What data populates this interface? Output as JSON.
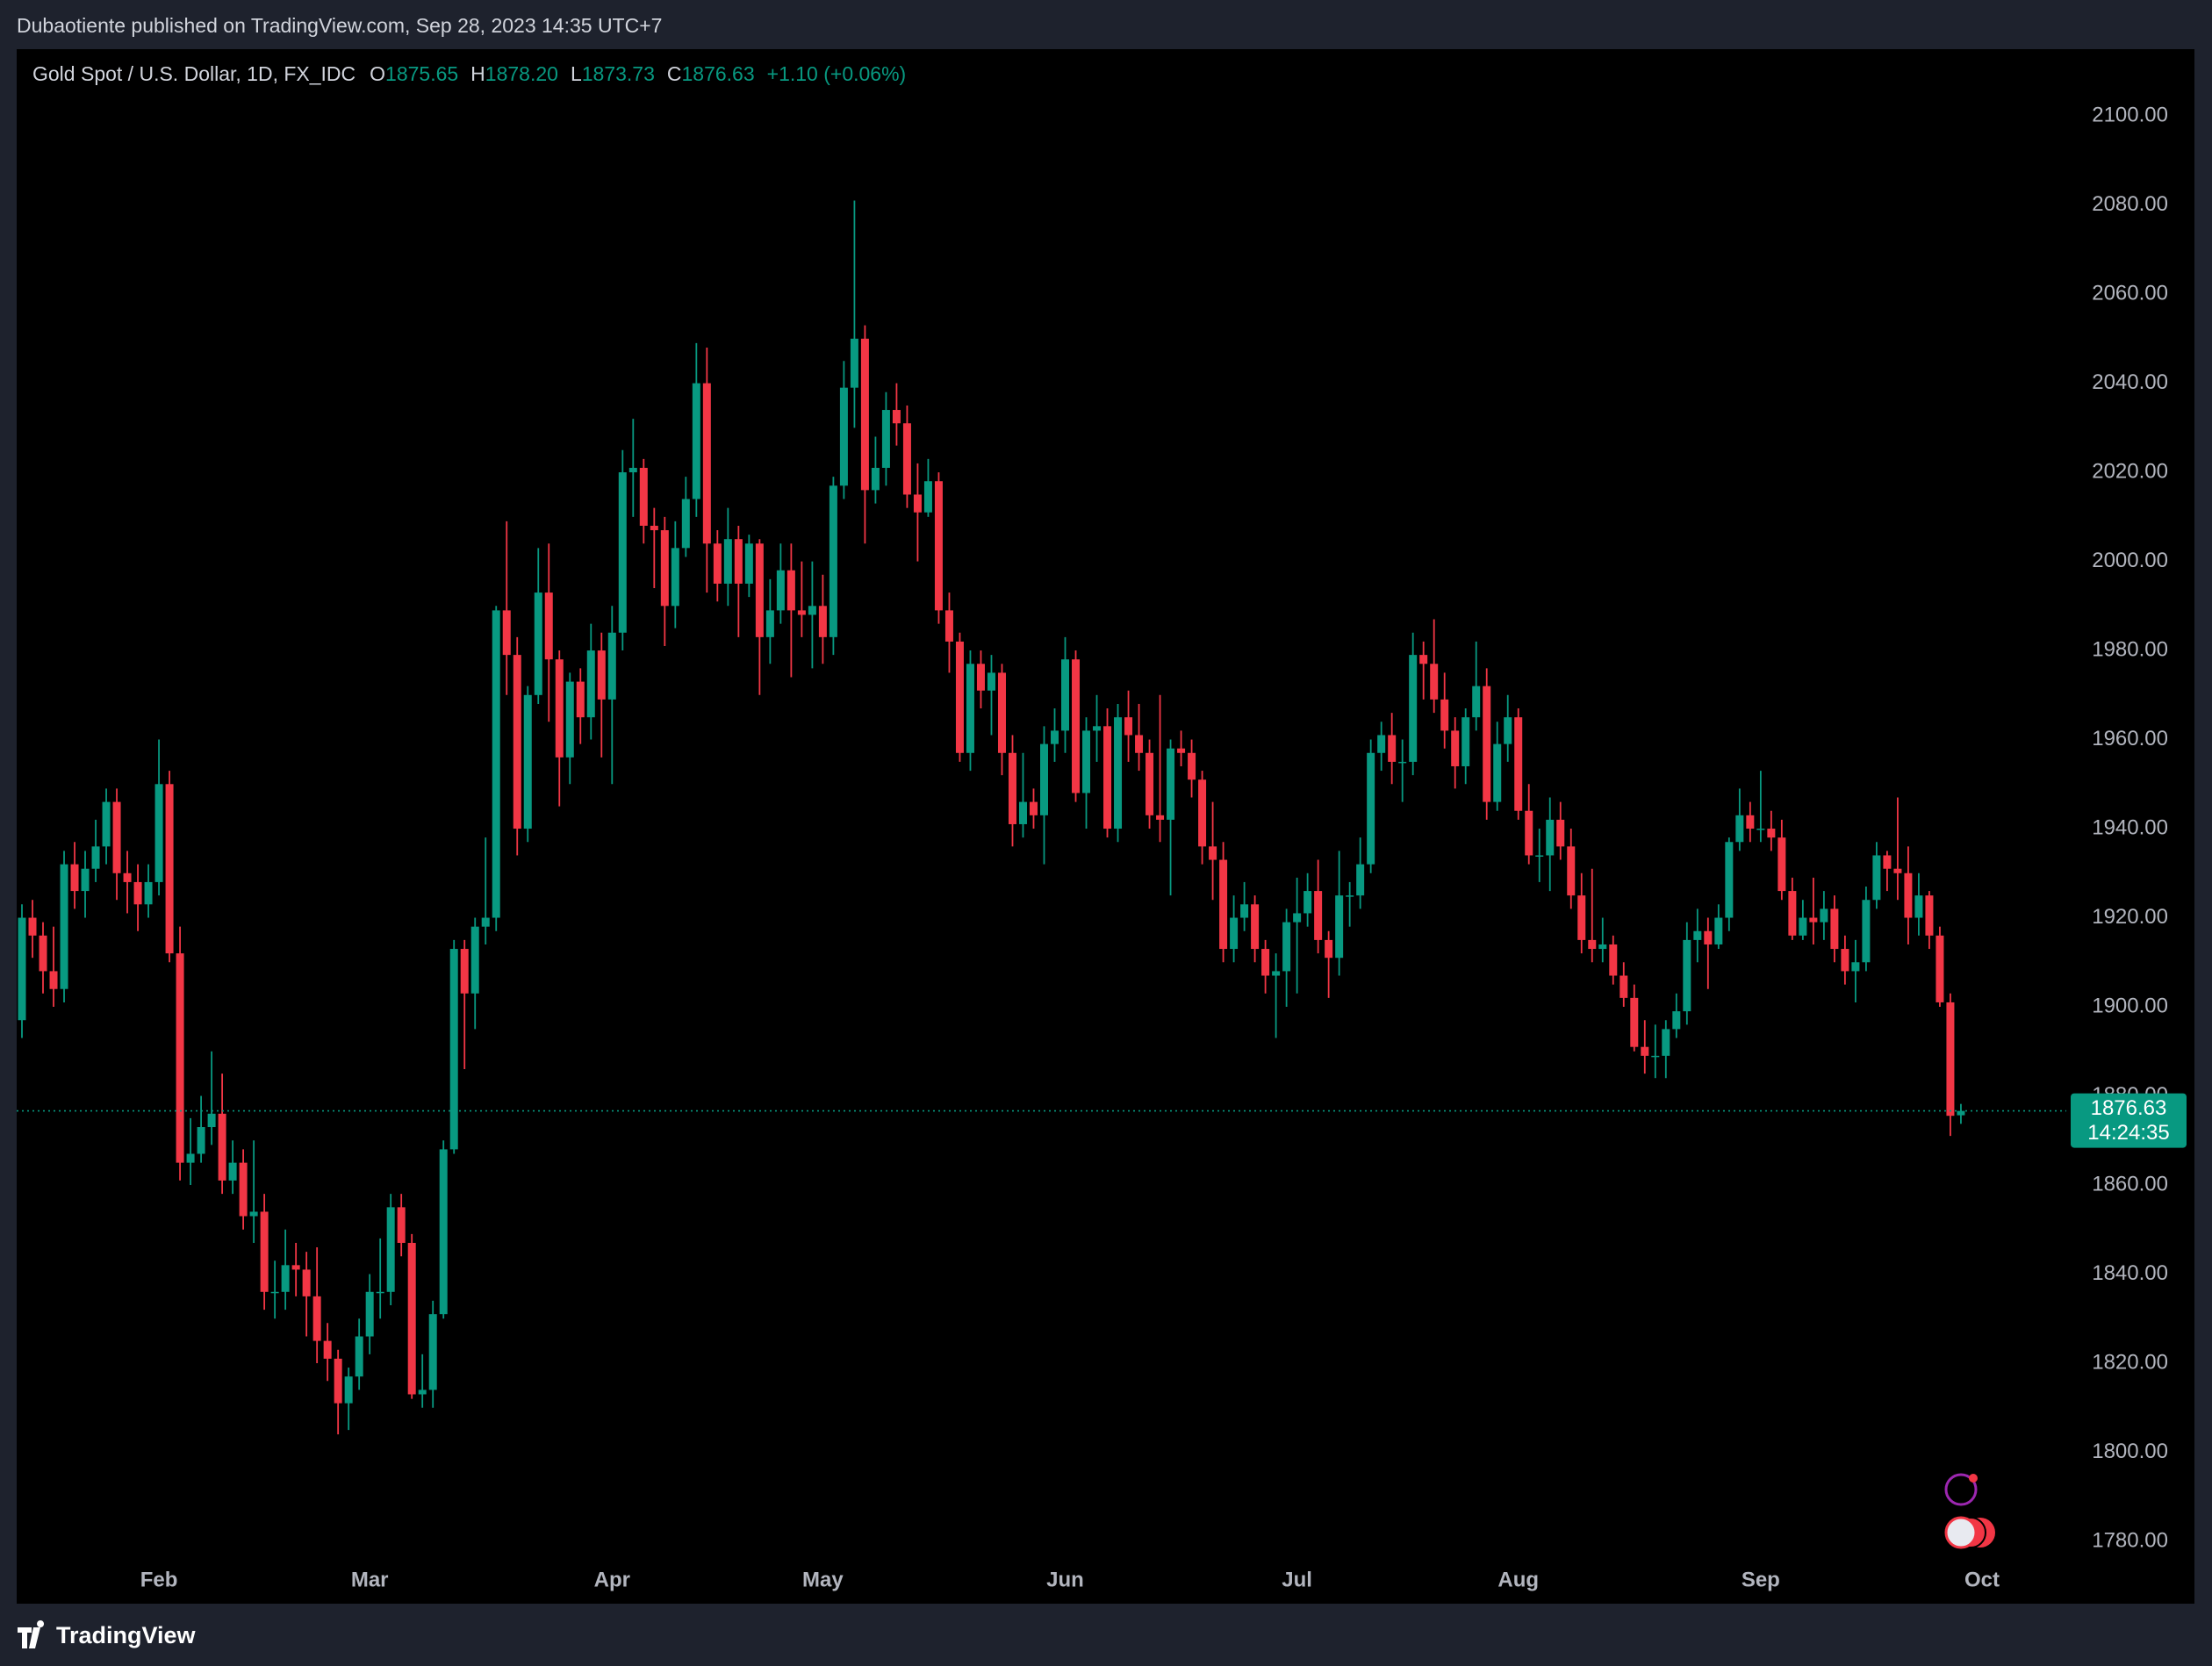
{
  "header": {
    "published": "Dubaotiente published on TradingView.com, Sep 28, 2023 14:35 UTC+7"
  },
  "chart_data": {
    "type": "candlestick",
    "title": "Gold Spot / U.S. Dollar, 1D, FX_IDC",
    "legend": [
      {
        "key": "O",
        "value": "1875.65"
      },
      {
        "key": "H",
        "value": "1878.20"
      },
      {
        "key": "L",
        "value": "1873.73"
      },
      {
        "key": "C",
        "value": "1876.63"
      }
    ],
    "change": "+1.10 (+0.06%)",
    "up_color": "#089981",
    "down_color": "#f23645",
    "open": [
      1897,
      1920,
      1916,
      1908,
      1904,
      1932,
      1926,
      1931,
      1936,
      1946,
      1930,
      1928,
      1923,
      1928,
      1950,
      1912,
      1865,
      1867,
      1873,
      1876,
      1861,
      1865,
      1853,
      1854,
      1836,
      1836,
      1842,
      1841,
      1835,
      1825,
      1821,
      1811,
      1817,
      1826,
      1836,
      1836,
      1855,
      1847,
      1813,
      1814,
      1831,
      1868,
      1913,
      1903,
      1918,
      1920,
      1989,
      1979,
      1940,
      1970,
      1993,
      1978,
      1956,
      1973,
      1965,
      1980,
      1969,
      1984,
      2020,
      2021,
      2008,
      2007,
      1990,
      2003,
      2014,
      2040,
      2004,
      1995,
      2005,
      1995,
      2004,
      1983,
      1989,
      1998,
      1989,
      1988,
      1990,
      1983,
      2017,
      2039,
      2050,
      2016,
      2021,
      2034,
      2031,
      2015,
      2011,
      2018,
      1989,
      1982,
      1957,
      1977,
      1971,
      1975,
      1957,
      1941,
      1946,
      1943,
      1959,
      1962,
      1978,
      1948,
      1962,
      1963,
      1940,
      1965,
      1961,
      1957,
      1943,
      1942,
      1958,
      1957,
      1951,
      1936,
      1933,
      1913,
      1920,
      1923,
      1913,
      1907,
      1908,
      1919,
      1921,
      1926,
      1915,
      1911,
      1925,
      1925,
      1932,
      1957,
      1961,
      1955,
      1955,
      1979,
      1977,
      1969,
      1962,
      1954,
      1965,
      1972,
      1946,
      1959,
      1965,
      1944,
      1934,
      1934,
      1942,
      1936,
      1925,
      1915,
      1913,
      1914,
      1907,
      1902,
      1891,
      1889,
      1889,
      1895,
      1899,
      1915,
      1917,
      1914,
      1920,
      1937,
      1943,
      1940,
      1940,
      1938,
      1926,
      1916,
      1920,
      1919,
      1922,
      1913,
      1908,
      1910,
      1924,
      1934,
      1931,
      1930,
      1920,
      1925,
      1916,
      1901,
      1875.65
    ],
    "high": [
      1923,
      1924,
      1919,
      1918,
      1935,
      1937,
      1935,
      1942,
      1949,
      1949,
      1935,
      1932,
      1932,
      1960,
      1953,
      1918,
      1875,
      1880,
      1890,
      1885,
      1870,
      1868,
      1870,
      1858,
      1843,
      1850,
      1847,
      1845,
      1846,
      1829,
      1823,
      1819,
      1830,
      1840,
      1848,
      1858,
      1858,
      1849,
      1822,
      1834,
      1870,
      1915,
      1915,
      1920,
      1938,
      1990,
      2009,
      1983,
      1972,
      2003,
      2004,
      1980,
      1975,
      1976,
      1986,
      1984,
      1990,
      2025,
      2032,
      2023,
      2012,
      2010,
      2009,
      2019,
      2049,
      2048,
      2007,
      2012,
      2008,
      2006,
      2005,
      1996,
      2004,
      2004,
      2000,
      2000,
      1997,
      2019,
      2045,
      2081,
      2053,
      2028,
      2038,
      2040,
      2035,
      2022,
      2023,
      2020,
      1993,
      1984,
      1980,
      1980,
      1979,
      1977,
      1961,
      1957,
      1949,
      1963,
      1967,
      1983,
      1980,
      1965,
      1970,
      1967,
      1968,
      1971,
      1968,
      1960,
      1970,
      1960,
      1962,
      1960,
      1953,
      1946,
      1937,
      1925,
      1928,
      1925,
      1915,
      1912,
      1922,
      1929,
      1930,
      1933,
      1917,
      1935,
      1928,
      1938,
      1960,
      1964,
      1966,
      1960,
      1984,
      1982,
      1987,
      1975,
      1965,
      1967,
      1982,
      1976,
      1964,
      1970,
      1967,
      1950,
      1940,
      1947,
      1946,
      1940,
      1930,
      1931,
      1920,
      1916,
      1910,
      1905,
      1897,
      1896,
      1897,
      1903,
      1919,
      1922,
      1920,
      1923,
      1938,
      1949,
      1946,
      1953,
      1944,
      1942,
      1929,
      1924,
      1929,
      1926,
      1925,
      1916,
      1915,
      1927,
      1937,
      1935,
      1947,
      1936,
      1930,
      1926,
      1918,
      1903,
      1878.2
    ],
    "low": [
      1893,
      1911,
      1903,
      1900,
      1901,
      1922,
      1920,
      1928,
      1932,
      1924,
      1921,
      1917,
      1920,
      1925,
      1910,
      1861,
      1860,
      1865,
      1869,
      1858,
      1858,
      1850,
      1847,
      1832,
      1830,
      1832,
      1835,
      1826,
      1820,
      1816,
      1804,
      1805,
      1814,
      1822,
      1830,
      1833,
      1844,
      1812,
      1810,
      1810,
      1830,
      1867,
      1886,
      1895,
      1914,
      1917,
      1970,
      1934,
      1937,
      1968,
      1964,
      1945,
      1950,
      1959,
      1960,
      1956,
      1950,
      1980,
      2010,
      2004,
      1994,
      1981,
      1985,
      2001,
      2010,
      1993,
      1991,
      1990,
      1983,
      1992,
      1970,
      1977,
      1986,
      1974,
      1983,
      1976,
      1977,
      1979,
      2014,
      2030,
      2004,
      2013,
      2017,
      2026,
      2012,
      2000,
      2010,
      1986,
      1975,
      1955,
      1953,
      1967,
      1961,
      1952,
      1936,
      1938,
      1940,
      1932,
      1955,
      1957,
      1946,
      1940,
      1955,
      1938,
      1937,
      1955,
      1953,
      1940,
      1937,
      1925,
      1954,
      1947,
      1932,
      1924,
      1910,
      1910,
      1917,
      1910,
      1903,
      1893,
      1900,
      1903,
      1918,
      1912,
      1902,
      1907,
      1918,
      1922,
      1930,
      1953,
      1950,
      1946,
      1952,
      1969,
      1966,
      1958,
      1949,
      1950,
      1962,
      1942,
      1944,
      1955,
      1942,
      1932,
      1928,
      1926,
      1933,
      1922,
      1912,
      1910,
      1910,
      1905,
      1900,
      1890,
      1885,
      1884,
      1884,
      1893,
      1896,
      1910,
      1904,
      1913,
      1917,
      1935,
      1937,
      1937,
      1935,
      1924,
      1915,
      1915,
      1914,
      1915,
      1910,
      1905,
      1901,
      1908,
      1922,
      1926,
      1924,
      1914,
      1916,
      1913,
      1900,
      1871,
      1873.73
    ],
    "close": [
      1920,
      1916,
      1908,
      1904,
      1932,
      1926,
      1931,
      1936,
      1946,
      1930,
      1928,
      1923,
      1928,
      1950,
      1912,
      1865,
      1867,
      1873,
      1876,
      1861,
      1865,
      1853,
      1854,
      1836,
      1836,
      1842,
      1841,
      1835,
      1825,
      1821,
      1811,
      1817,
      1826,
      1836,
      1836,
      1855,
      1847,
      1813,
      1814,
      1831,
      1868,
      1913,
      1903,
      1918,
      1920,
      1989,
      1979,
      1940,
      1970,
      1993,
      1978,
      1956,
      1973,
      1965,
      1980,
      1969,
      1984,
      2020,
      2021,
      2008,
      2007,
      1990,
      2003,
      2014,
      2040,
      2004,
      1995,
      2005,
      1995,
      2004,
      1983,
      1989,
      1998,
      1989,
      1988,
      1990,
      1983,
      2017,
      2039,
      2050,
      2016,
      2021,
      2034,
      2031,
      2015,
      2011,
      2018,
      1989,
      1982,
      1957,
      1977,
      1971,
      1975,
      1957,
      1941,
      1946,
      1943,
      1959,
      1962,
      1978,
      1948,
      1962,
      1963,
      1940,
      1965,
      1961,
      1957,
      1943,
      1942,
      1958,
      1957,
      1951,
      1936,
      1933,
      1913,
      1920,
      1923,
      1913,
      1907,
      1908,
      1919,
      1921,
      1926,
      1915,
      1911,
      1925,
      1925,
      1932,
      1957,
      1961,
      1955,
      1955,
      1979,
      1977,
      1969,
      1962,
      1954,
      1965,
      1972,
      1946,
      1959,
      1965,
      1944,
      1934,
      1934,
      1942,
      1936,
      1925,
      1915,
      1913,
      1914,
      1907,
      1902,
      1891,
      1889,
      1889,
      1895,
      1899,
      1915,
      1917,
      1914,
      1920,
      1937,
      1943,
      1940,
      1940,
      1938,
      1926,
      1916,
      1920,
      1919,
      1922,
      1913,
      1908,
      1910,
      1924,
      1934,
      1931,
      1930,
      1920,
      1925,
      1916,
      1901,
      1875.53,
      1876.63
    ],
    "xlim": [
      -0.5,
      194
    ],
    "xticks": [
      {
        "value": 13,
        "label": "Feb"
      },
      {
        "value": 33,
        "label": "Mar"
      },
      {
        "value": 56,
        "label": "Apr"
      },
      {
        "value": 76,
        "label": "May"
      },
      {
        "value": 99,
        "label": "Jun"
      },
      {
        "value": 121,
        "label": "Jul"
      },
      {
        "value": 142,
        "label": "Aug"
      },
      {
        "value": 165,
        "label": "Sep"
      },
      {
        "value": 186,
        "label": "Oct"
      }
    ],
    "ylim": [
      1766,
      2115
    ],
    "yticks": [
      {
        "value": 1780,
        "label": "1780.00"
      },
      {
        "value": 1800,
        "label": "1800.00"
      },
      {
        "value": 1820,
        "label": "1820.00"
      },
      {
        "value": 1840,
        "label": "1840.00"
      },
      {
        "value": 1860,
        "label": "1860.00"
      },
      {
        "value": 1880,
        "label": "1880.00"
      },
      {
        "value": 1900,
        "label": "1900.00"
      },
      {
        "value": 1920,
        "label": "1920.00"
      },
      {
        "value": 1940,
        "label": "1940.00"
      },
      {
        "value": 1960,
        "label": "1960.00"
      },
      {
        "value": 1980,
        "label": "1980.00"
      },
      {
        "value": 2000,
        "label": "2000.00"
      },
      {
        "value": 2020,
        "label": "2020.00"
      },
      {
        "value": 2040,
        "label": "2040.00"
      },
      {
        "value": 2060,
        "label": "2060.00"
      },
      {
        "value": 2080,
        "label": "2080.00"
      },
      {
        "value": 2100,
        "label": "2100.00"
      }
    ],
    "last_price": 1876.63,
    "countdown": "14:24:35"
  },
  "footer": {
    "brand": "TradingView"
  }
}
